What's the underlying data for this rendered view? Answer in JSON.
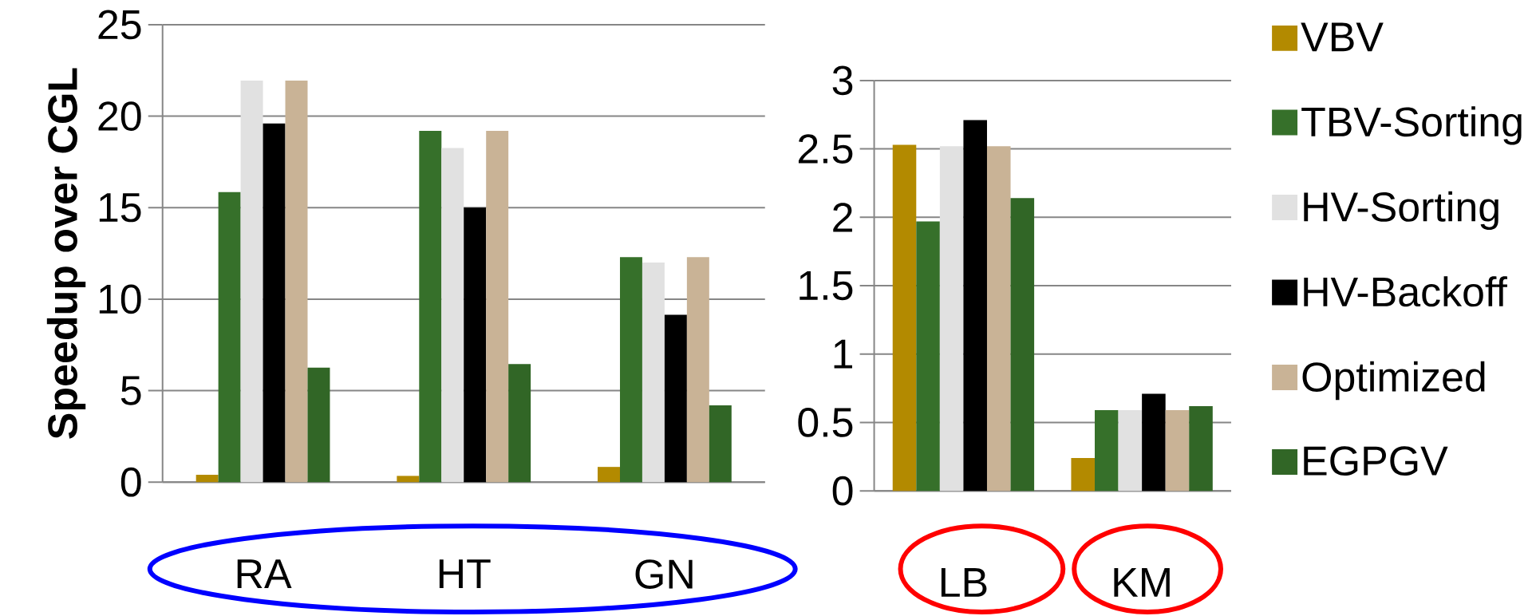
{
  "chart_data": [
    {
      "type": "bar",
      "ylabel": "Speedup over CGL",
      "categories": [
        "RA",
        "HT",
        "GN"
      ],
      "ylim": [
        0,
        25
      ],
      "yticks": [
        0,
        5,
        10,
        15,
        20,
        25
      ],
      "grid": "y",
      "legend": false,
      "series": [
        {
          "color": "#b38a00",
          "values": [
            0.4,
            0.34,
            0.83
          ]
        },
        {
          "color": "#36702a",
          "values": [
            15.85,
            19.2,
            12.3
          ]
        },
        {
          "color": "#e1e1e1",
          "values": [
            21.95,
            18.26,
            12.0
          ]
        },
        {
          "color": "#000000",
          "values": [
            19.6,
            15.0,
            9.15
          ]
        },
        {
          "color": "#c9b396",
          "values": [
            21.95,
            19.2,
            12.3
          ]
        },
        {
          "color": "#316626",
          "values": [
            6.26,
            6.45,
            4.2
          ]
        }
      ]
    },
    {
      "type": "bar",
      "categories": [
        "LB",
        "KM"
      ],
      "ylim": [
        0,
        3
      ],
      "yticks": [
        0,
        0.5,
        1,
        1.5,
        2,
        2.5,
        3
      ],
      "grid": "y",
      "legend": "right",
      "series": [
        {
          "name": "VBV",
          "color": "#b38a00",
          "values": [
            2.53,
            0.24
          ]
        },
        {
          "name": "TBV-Sorting",
          "color": "#36702a",
          "values": [
            1.97,
            0.59
          ]
        },
        {
          "name": "HV-Sorting",
          "color": "#e1e1e1",
          "values": [
            2.52,
            0.59
          ]
        },
        {
          "name": "HV-Backoff",
          "color": "#000000",
          "values": [
            2.71,
            0.71
          ]
        },
        {
          "name": "Optimized",
          "color": "#c9b396",
          "values": [
            2.52,
            0.59
          ]
        },
        {
          "name": "EGPGV",
          "color": "#316626",
          "values": [
            2.14,
            0.62
          ]
        }
      ]
    }
  ]
}
